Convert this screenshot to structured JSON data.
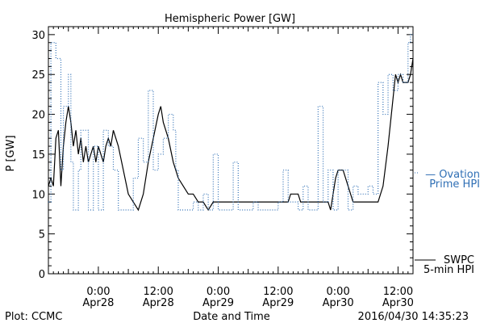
{
  "chart_data": {
    "type": "line",
    "title": "Hemispheric Power [GW]",
    "ylabel": "P [GW]",
    "xlabel": "Date and Time",
    "ylim": [
      0,
      31
    ],
    "xlim": [
      "2016-04-27T14:00",
      "2016-04-30T15:00"
    ],
    "y_ticks": [
      0,
      5,
      10,
      15,
      20,
      25,
      30
    ],
    "x_ticks": [
      {
        "time": "2016-04-28T00:00",
        "label_top": "0:00",
        "label_bottom": "Apr28"
      },
      {
        "time": "2016-04-28T12:00",
        "label_top": "12:00",
        "label_bottom": "Apr28"
      },
      {
        "time": "2016-04-29T00:00",
        "label_top": "0:00",
        "label_bottom": "Apr29"
      },
      {
        "time": "2016-04-29T12:00",
        "label_top": "12:00",
        "label_bottom": "Apr29"
      },
      {
        "time": "2016-04-30T00:00",
        "label_top": "0:00",
        "label_bottom": "Apr30"
      },
      {
        "time": "2016-04-30T12:00",
        "label_top": "12:00",
        "label_bottom": "Apr30"
      }
    ],
    "series": [
      {
        "name": "SWPC 5-min HPI",
        "style": "solid",
        "color": "#000000",
        "points": [
          [
            "2016-04-27T14:00",
            11
          ],
          [
            "2016-04-27T14:30",
            12
          ],
          [
            "2016-04-27T15:00",
            11
          ],
          [
            "2016-04-27T15:30",
            17
          ],
          [
            "2016-04-27T16:00",
            18
          ],
          [
            "2016-04-27T16:30",
            11
          ],
          [
            "2016-04-27T17:00",
            16
          ],
          [
            "2016-04-27T17:30",
            19
          ],
          [
            "2016-04-27T18:00",
            21
          ],
          [
            "2016-04-27T18:30",
            19
          ],
          [
            "2016-04-27T19:00",
            16
          ],
          [
            "2016-04-27T19:30",
            18
          ],
          [
            "2016-04-27T20:00",
            15
          ],
          [
            "2016-04-27T20:30",
            17
          ],
          [
            "2016-04-27T21:00",
            14
          ],
          [
            "2016-04-27T21:30",
            16
          ],
          [
            "2016-04-27T22:00",
            14
          ],
          [
            "2016-04-27T22:30",
            15
          ],
          [
            "2016-04-27T23:00",
            16
          ],
          [
            "2016-04-27T23:30",
            14
          ],
          [
            "2016-04-28T00:00",
            16
          ],
          [
            "2016-04-28T00:30",
            15
          ],
          [
            "2016-04-28T01:00",
            14
          ],
          [
            "2016-04-28T01:30",
            16
          ],
          [
            "2016-04-28T02:00",
            17
          ],
          [
            "2016-04-28T02:30",
            16
          ],
          [
            "2016-04-28T03:00",
            18
          ],
          [
            "2016-04-28T04:00",
            16
          ],
          [
            "2016-04-28T05:00",
            13
          ],
          [
            "2016-04-28T06:00",
            10
          ],
          [
            "2016-04-28T07:00",
            9
          ],
          [
            "2016-04-28T08:00",
            8
          ],
          [
            "2016-04-28T09:00",
            10
          ],
          [
            "2016-04-28T10:00",
            14
          ],
          [
            "2016-04-28T11:00",
            17
          ],
          [
            "2016-04-28T12:00",
            20
          ],
          [
            "2016-04-28T12:30",
            21
          ],
          [
            "2016-04-28T13:00",
            19
          ],
          [
            "2016-04-28T14:00",
            17
          ],
          [
            "2016-04-28T15:00",
            14
          ],
          [
            "2016-04-28T16:00",
            12
          ],
          [
            "2016-04-28T17:00",
            11
          ],
          [
            "2016-04-28T18:00",
            10
          ],
          [
            "2016-04-28T19:00",
            10
          ],
          [
            "2016-04-28T20:00",
            9
          ],
          [
            "2016-04-28T21:00",
            9
          ],
          [
            "2016-04-28T22:00",
            8
          ],
          [
            "2016-04-28T23:00",
            9
          ],
          [
            "2016-04-29T00:00",
            9
          ],
          [
            "2016-04-29T02:00",
            9
          ],
          [
            "2016-04-29T04:00",
            9
          ],
          [
            "2016-04-29T06:00",
            9
          ],
          [
            "2016-04-29T08:00",
            9
          ],
          [
            "2016-04-29T10:00",
            9
          ],
          [
            "2016-04-29T12:00",
            9
          ],
          [
            "2016-04-29T14:00",
            9
          ],
          [
            "2016-04-29T14:30",
            10
          ],
          [
            "2016-04-29T16:00",
            10
          ],
          [
            "2016-04-29T16:30",
            9
          ],
          [
            "2016-04-29T18:00",
            9
          ],
          [
            "2016-04-29T20:00",
            9
          ],
          [
            "2016-04-29T22:00",
            9
          ],
          [
            "2016-04-29T22:30",
            8
          ],
          [
            "2016-04-29T23:00",
            10
          ],
          [
            "2016-04-29T23:30",
            12
          ],
          [
            "2016-04-30T00:00",
            13
          ],
          [
            "2016-04-30T01:00",
            13
          ],
          [
            "2016-04-30T02:00",
            11
          ],
          [
            "2016-04-30T03:00",
            9
          ],
          [
            "2016-04-30T04:00",
            9
          ],
          [
            "2016-04-30T05:00",
            9
          ],
          [
            "2016-04-30T06:00",
            9
          ],
          [
            "2016-04-30T07:00",
            9
          ],
          [
            "2016-04-30T08:00",
            9
          ],
          [
            "2016-04-30T09:00",
            11
          ],
          [
            "2016-04-30T10:00",
            16
          ],
          [
            "2016-04-30T11:00",
            22
          ],
          [
            "2016-04-30T11:30",
            25
          ],
          [
            "2016-04-30T12:00",
            24
          ],
          [
            "2016-04-30T12:30",
            25
          ],
          [
            "2016-04-30T13:00",
            24
          ],
          [
            "2016-04-30T14:00",
            24
          ],
          [
            "2016-04-30T14:30",
            25
          ],
          [
            "2016-04-30T15:00",
            27
          ]
        ]
      },
      {
        "name": "Ovation Prime HPI",
        "style": "dotted",
        "color": "#2f6fb5",
        "points": [
          [
            "2016-04-27T14:00",
            9
          ],
          [
            "2016-04-27T14:30",
            29
          ],
          [
            "2016-04-27T15:30",
            27
          ],
          [
            "2016-04-27T16:30",
            13
          ],
          [
            "2016-04-27T17:00",
            21
          ],
          [
            "2016-04-27T18:00",
            25
          ],
          [
            "2016-04-27T18:30",
            14
          ],
          [
            "2016-04-27T19:00",
            8
          ],
          [
            "2016-04-27T20:00",
            13
          ],
          [
            "2016-04-27T20:30",
            18
          ],
          [
            "2016-04-27T22:00",
            8
          ],
          [
            "2016-04-27T23:00",
            16
          ],
          [
            "2016-04-28T00:00",
            8
          ],
          [
            "2016-04-28T01:00",
            18
          ],
          [
            "2016-04-28T02:00",
            16
          ],
          [
            "2016-04-28T03:00",
            13
          ],
          [
            "2016-04-28T04:00",
            8
          ],
          [
            "2016-04-28T05:00",
            8
          ],
          [
            "2016-04-28T06:00",
            8
          ],
          [
            "2016-04-28T07:00",
            12
          ],
          [
            "2016-04-28T08:00",
            17
          ],
          [
            "2016-04-28T09:00",
            14
          ],
          [
            "2016-04-28T10:00",
            23
          ],
          [
            "2016-04-28T11:00",
            13
          ],
          [
            "2016-04-28T12:00",
            15
          ],
          [
            "2016-04-28T13:00",
            17
          ],
          [
            "2016-04-28T14:00",
            20
          ],
          [
            "2016-04-28T15:00",
            18
          ],
          [
            "2016-04-28T15:30",
            13
          ],
          [
            "2016-04-28T16:00",
            8
          ],
          [
            "2016-04-28T17:00",
            8
          ],
          [
            "2016-04-28T18:00",
            8
          ],
          [
            "2016-04-28T19:00",
            9
          ],
          [
            "2016-04-28T20:00",
            8
          ],
          [
            "2016-04-28T21:00",
            10
          ],
          [
            "2016-04-28T22:00",
            8
          ],
          [
            "2016-04-28T23:00",
            15
          ],
          [
            "2016-04-29T00:00",
            8
          ],
          [
            "2016-04-29T02:00",
            8
          ],
          [
            "2016-04-29T03:00",
            14
          ],
          [
            "2016-04-29T04:00",
            8
          ],
          [
            "2016-04-29T06:00",
            8
          ],
          [
            "2016-04-29T07:00",
            9
          ],
          [
            "2016-04-29T08:00",
            8
          ],
          [
            "2016-04-29T10:00",
            8
          ],
          [
            "2016-04-29T12:00",
            9
          ],
          [
            "2016-04-29T13:00",
            13
          ],
          [
            "2016-04-29T14:00",
            9
          ],
          [
            "2016-04-29T16:00",
            8
          ],
          [
            "2016-04-29T17:00",
            11
          ],
          [
            "2016-04-29T18:00",
            8
          ],
          [
            "2016-04-29T20:00",
            21
          ],
          [
            "2016-04-29T21:00",
            9
          ],
          [
            "2016-04-29T22:00",
            13
          ],
          [
            "2016-04-29T23:00",
            8
          ],
          [
            "2016-04-30T00:00",
            13
          ],
          [
            "2016-04-30T01:00",
            13
          ],
          [
            "2016-04-30T02:00",
            8
          ],
          [
            "2016-04-30T03:00",
            11
          ],
          [
            "2016-04-30T04:00",
            10
          ],
          [
            "2016-04-30T05:00",
            10
          ],
          [
            "2016-04-30T06:00",
            11
          ],
          [
            "2016-04-30T07:00",
            10
          ],
          [
            "2016-04-30T08:00",
            24
          ],
          [
            "2016-04-30T09:00",
            20
          ],
          [
            "2016-04-30T10:00",
            25
          ],
          [
            "2016-04-30T11:00",
            23
          ],
          [
            "2016-04-30T12:00",
            25
          ],
          [
            "2016-04-30T13:00",
            24
          ],
          [
            "2016-04-30T14:00",
            29
          ],
          [
            "2016-04-30T14:30",
            30
          ],
          [
            "2016-04-30T15:00",
            30
          ]
        ]
      }
    ],
    "legend": {
      "placement": "right",
      "ovation": {
        "line1": "— Ovation",
        "line2": "Prime HPI",
        "color": "#2f6fb5"
      },
      "swpc": {
        "line1": "SWPC",
        "line2": "5-min HPI",
        "color": "#000000"
      }
    }
  },
  "footer": {
    "left": "Plot: CCMC",
    "center": "Date and Time",
    "right": "2016/04/30 14:35:23"
  }
}
